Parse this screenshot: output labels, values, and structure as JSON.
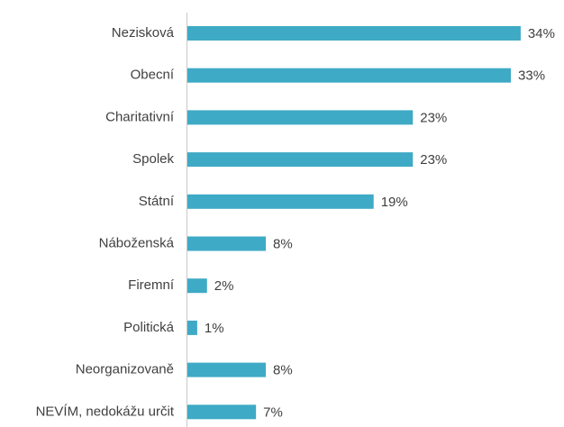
{
  "chart_data": {
    "type": "bar",
    "orientation": "horizontal",
    "categories": [
      "Nezisková",
      "Obecní",
      "Charitativní",
      "Spolek",
      "Státní",
      "Náboženská",
      "Firemní",
      "Politická",
      "Neorganizovaně",
      "NEVÍM, nedokážu určit"
    ],
    "values": [
      34,
      33,
      23,
      23,
      19,
      8,
      2,
      1,
      8,
      7
    ],
    "value_labels": [
      "34%",
      "33%",
      "23%",
      "23%",
      "19%",
      "8%",
      "2%",
      "1%",
      "8%",
      "7%"
    ],
    "color": "#3eaac5"
  }
}
